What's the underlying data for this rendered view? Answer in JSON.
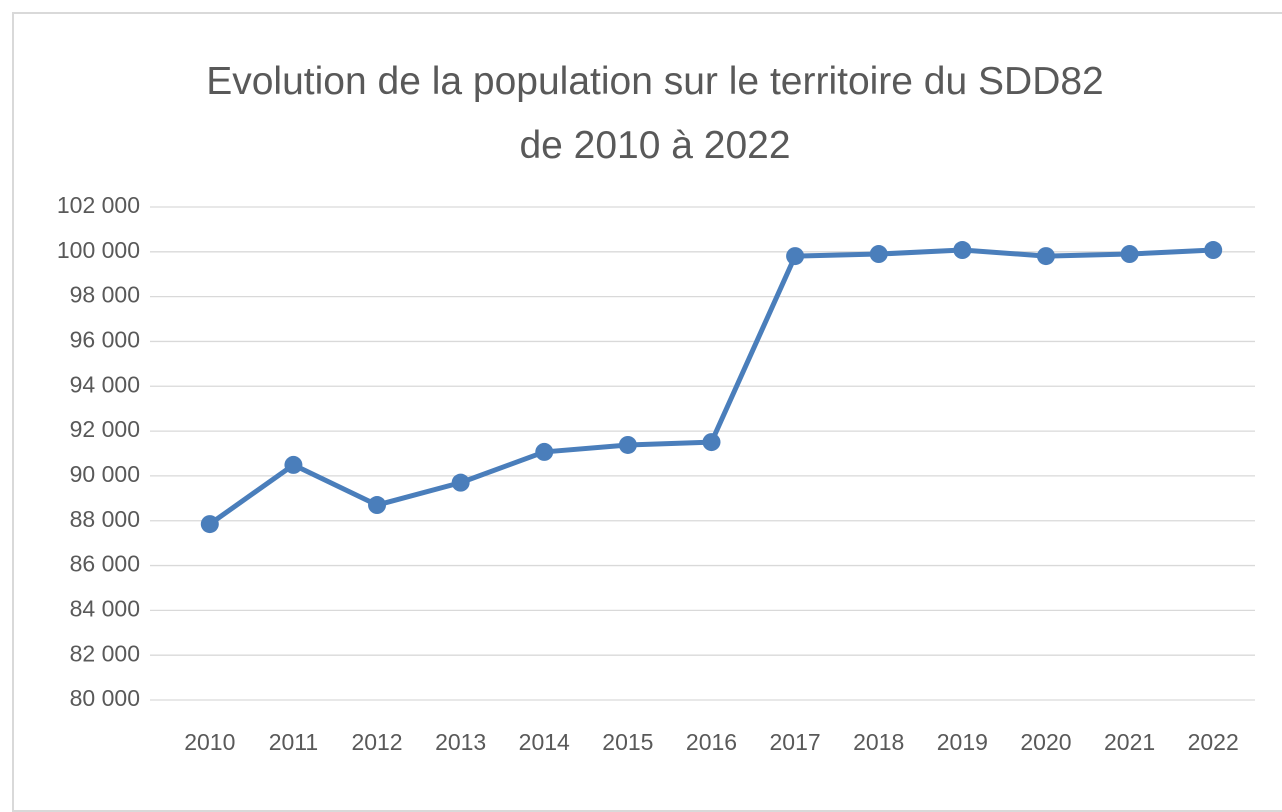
{
  "chart_data": {
    "type": "line",
    "title": "Evolution de la population sur le territoire du SDD82 de 2010 à 2022",
    "categories": [
      "2010",
      "2011",
      "2012",
      "2013",
      "2014",
      "2015",
      "2016",
      "2017",
      "2018",
      "2019",
      "2020",
      "2021",
      "2022"
    ],
    "series": [
      {
        "color": "#4a7ebb",
        "values": [
          87850,
          90490,
          88700,
          89700,
          91070,
          91380,
          91510,
          99810,
          99900,
          100080,
          99810,
          99900,
          100080
        ]
      }
    ],
    "ylim": [
      80000,
      102000
    ],
    "yticks": [
      {
        "value": 80000,
        "label": "80 000"
      },
      {
        "value": 82000,
        "label": "82 000"
      },
      {
        "value": 84000,
        "label": "84 000"
      },
      {
        "value": 86000,
        "label": "86 000"
      },
      {
        "value": 88000,
        "label": "88 000"
      },
      {
        "value": 90000,
        "label": "90 000"
      },
      {
        "value": 92000,
        "label": "92 000"
      },
      {
        "value": 94000,
        "label": "94 000"
      },
      {
        "value": 96000,
        "label": "96 000"
      },
      {
        "value": 98000,
        "label": "98 000"
      },
      {
        "value": 100000,
        "label": "100 000"
      },
      {
        "value": 102000,
        "label": "102 000"
      }
    ],
    "grid": true
  }
}
